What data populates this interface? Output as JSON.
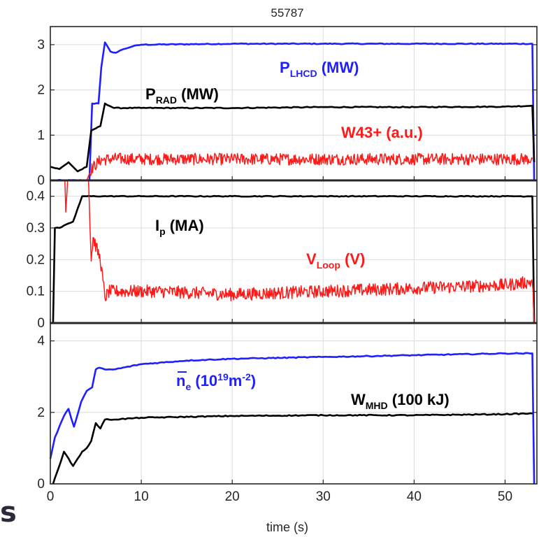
{
  "figure": {
    "title": "55787",
    "xlabel": "time (s)",
    "crop_fragment": "s"
  },
  "chart_data": [
    {
      "type": "line",
      "panel": "top",
      "xlim": [
        0,
        53.5
      ],
      "ylim": [
        0,
        3.4
      ],
      "yticks": [
        0,
        1,
        2,
        3
      ],
      "grid": true,
      "series": [
        {
          "name": "PLHCD (MW)",
          "label_main": "P",
          "label_sub": "LHCD",
          "label_tail": " (MW)",
          "color": "#1f1fff",
          "x": [
            0,
            4.3,
            4.6,
            5.3,
            5.6,
            6.0,
            6.6,
            7.2,
            8.0,
            9.0,
            10,
            20,
            30,
            40,
            50,
            53.0,
            53.2
          ],
          "y": [
            0,
            0,
            1.7,
            1.7,
            2.5,
            3.05,
            2.85,
            2.82,
            2.9,
            2.96,
            3.0,
            3.02,
            3.02,
            3.02,
            3.02,
            3.02,
            0
          ]
        },
        {
          "name": "PRAD (MW)",
          "label_main": "P",
          "label_sub": "RAD",
          "label_tail": " (MW)",
          "color": "#000000",
          "x": [
            0,
            1,
            2,
            2.5,
            3,
            4,
            4.5,
            5.5,
            6.0,
            7.0,
            10,
            20,
            30,
            40,
            50,
            53.0,
            53.2
          ],
          "y": [
            0.3,
            0.25,
            0.4,
            0.3,
            0.2,
            0.3,
            1.1,
            1.2,
            1.7,
            1.6,
            1.6,
            1.6,
            1.62,
            1.62,
            1.63,
            1.65,
            0.4
          ]
        },
        {
          "name": "W43+ (a.u.)",
          "color": "#ff1a1a",
          "x": [
            0,
            4.0,
            4.5,
            5.5,
            7,
            10,
            20,
            30,
            40,
            50,
            53.0
          ],
          "y": [
            0,
            0,
            0.25,
            0.45,
            0.48,
            0.47,
            0.47,
            0.47,
            0.47,
            0.47,
            0.47
          ],
          "noise": 0.13
        }
      ]
    },
    {
      "type": "line",
      "panel": "middle",
      "xlim": [
        0,
        53.5
      ],
      "ylim": [
        0,
        0.45
      ],
      "yticks": [
        0,
        0.1,
        0.2,
        0.3,
        0.4
      ],
      "grid": true,
      "series": [
        {
          "name": "Ip (MA)",
          "label_main": "I",
          "label_sub": "p",
          "label_tail": " (MA)",
          "color": "#000000",
          "x": [
            0.3,
            0.5,
            1.0,
            2.5,
            3.5,
            4.0,
            10,
            20,
            30,
            40,
            50,
            53.0,
            53.2
          ],
          "y": [
            0.0,
            0.3,
            0.3,
            0.32,
            0.4,
            0.4,
            0.4,
            0.4,
            0.4,
            0.4,
            0.4,
            0.4,
            0.0
          ]
        },
        {
          "name": "VLoop (V)",
          "label_main": "V",
          "label_sub": "Loop",
          "label_tail": " (V)",
          "color": "#ff1a1a",
          "x": [
            0,
            1.6,
            1.7,
            1.9,
            2.0,
            4.2,
            4.5,
            4.7,
            5.5,
            6.0,
            6.5,
            8,
            12,
            20,
            30,
            40,
            50,
            53.0,
            53.2
          ],
          "y": [
            0.45,
            0.45,
            0.35,
            0.45,
            0.45,
            0.45,
            0.2,
            0.27,
            0.2,
            0.08,
            0.1,
            0.1,
            0.1,
            0.09,
            0.1,
            0.11,
            0.12,
            0.13,
            0.0
          ],
          "noise": 0.02
        }
      ]
    },
    {
      "type": "line",
      "panel": "bottom",
      "xlim": [
        0,
        53.5
      ],
      "xticks": [
        0,
        10,
        20,
        30,
        40,
        50
      ],
      "ylim": [
        0,
        4.5
      ],
      "yticks": [
        0,
        2,
        4
      ],
      "grid": true,
      "series": [
        {
          "name": "ne (1019m-2)",
          "label_main": "n",
          "label_sub": "e",
          "label_tail": " (10",
          "label_sup": "19",
          "label_tail2": "m",
          "label_sup2": "-2",
          "label_tail3": ")",
          "color": "#1f1fff",
          "x": [
            0,
            0.5,
            1.5,
            2.0,
            2.6,
            3.4,
            4.0,
            4.6,
            5.0,
            5.4,
            6.0,
            7,
            10,
            15,
            20,
            30,
            40,
            50,
            53.0,
            53.2
          ],
          "y": [
            0.7,
            1.3,
            1.9,
            2.1,
            1.6,
            2.3,
            2.6,
            2.7,
            3.2,
            3.25,
            3.2,
            3.2,
            3.35,
            3.45,
            3.5,
            3.55,
            3.6,
            3.65,
            3.65,
            0.0
          ]
        },
        {
          "name": "WMHD (100 kJ)",
          "label_main": "W",
          "label_sub": "MHD",
          "label_tail": " (100 kJ)",
          "color": "#000000",
          "x": [
            0.3,
            1.5,
            2.5,
            3.5,
            4.0,
            4.5,
            5.0,
            5.5,
            6.0,
            7.0,
            10,
            20,
            30,
            40,
            50,
            53.0
          ],
          "y": [
            0.0,
            0.9,
            0.5,
            0.9,
            1.0,
            1.2,
            1.7,
            1.55,
            1.8,
            1.8,
            1.85,
            1.9,
            1.92,
            1.92,
            1.95,
            1.97
          ]
        }
      ]
    }
  ]
}
